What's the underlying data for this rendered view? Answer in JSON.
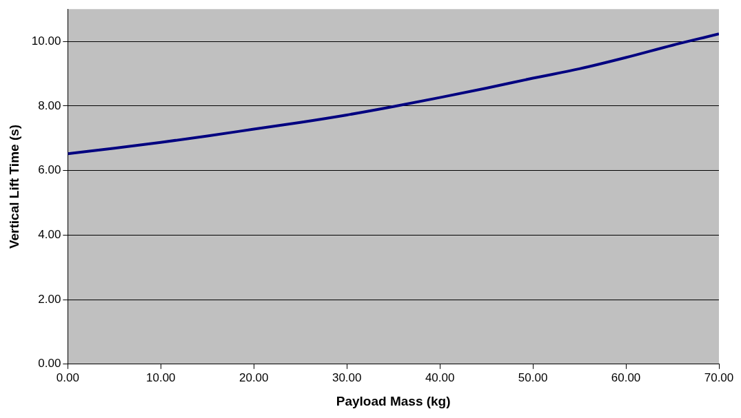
{
  "chart_data": {
    "type": "line",
    "xlabel": "Payload Mass (kg)",
    "ylabel": "Vertical Lift Time (s)",
    "x": [
      0,
      5,
      10,
      15,
      20,
      25,
      30,
      35,
      40,
      45,
      50,
      55,
      60,
      65,
      70
    ],
    "series": [
      {
        "color": "#000080",
        "values": [
          6.52,
          6.69,
          6.87,
          7.07,
          7.28,
          7.49,
          7.72,
          7.98,
          8.26,
          8.55,
          8.86,
          9.15,
          9.5,
          9.88,
          10.23
        ]
      }
    ],
    "xlim": [
      0,
      70
    ],
    "ylim": [
      0,
      11
    ],
    "xticks": [
      {
        "value": 0,
        "label": "0.00"
      },
      {
        "value": 10,
        "label": "10.00"
      },
      {
        "value": 20,
        "label": "20.00"
      },
      {
        "value": 30,
        "label": "30.00"
      },
      {
        "value": 40,
        "label": "40.00"
      },
      {
        "value": 50,
        "label": "50.00"
      },
      {
        "value": 60,
        "label": "60.00"
      },
      {
        "value": 70,
        "label": "70.00"
      }
    ],
    "yticks": [
      {
        "value": 0,
        "label": "0.00"
      },
      {
        "value": 2,
        "label": "2.00"
      },
      {
        "value": 4,
        "label": "4.00"
      },
      {
        "value": 6,
        "label": "6.00"
      },
      {
        "value": 8,
        "label": "8.00"
      },
      {
        "value": 10,
        "label": "10.00"
      }
    ],
    "grid": "y",
    "legend": false,
    "marker": "none",
    "line_style": "solid"
  }
}
